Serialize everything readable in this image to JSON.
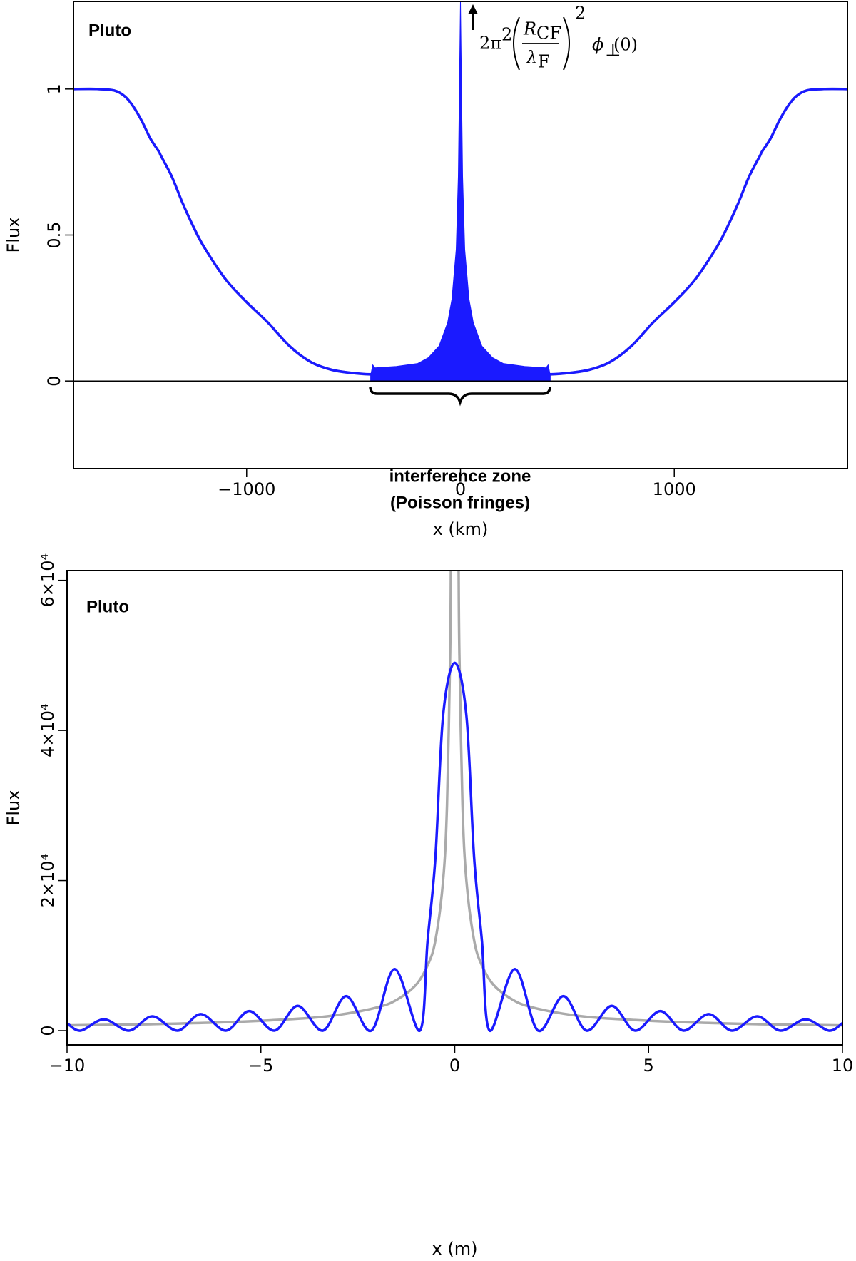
{
  "chart_data": [
    {
      "type": "line",
      "label": "Pluto",
      "xlabel": "x (km)",
      "ylabel": "Flux",
      "xlim": [
        -1810,
        1810
      ],
      "xticks": [
        {
          "value": -1000,
          "label": "−1000"
        },
        0,
        1000
      ],
      "ylim": [
        -0.3,
        1.3
      ],
      "yticks": [
        0,
        0.5,
        1
      ],
      "zero_line": true,
      "annotations": [
        "interference zone",
        "(Poisson fringes)"
      ],
      "formula": {
        "coef": "2π",
        "coef_exp": "2",
        "num": "R",
        "num_sub": "CF",
        "den": "λ",
        "den_sub": "F",
        "exp": "2",
        "func": "ϕ",
        "func_sub": "⊥",
        "arg": "(0)"
      },
      "series": [
        {
          "style": "line",
          "color": "#aaaaaa",
          "x": [
            -1810,
            -1700,
            -1620,
            -1570,
            -1530,
            -1490,
            -1450,
            -1410,
            -1400,
            -1350,
            -1300,
            -1250,
            -1200,
            -1100,
            -1000,
            -900,
            -800,
            -700,
            -600,
            -500,
            -420,
            -300,
            0,
            300,
            420,
            500,
            600,
            700,
            800,
            900,
            1000,
            1100,
            1200,
            1250,
            1300,
            1350,
            1400,
            1410,
            1450,
            1490,
            1530,
            1570,
            1620,
            1700,
            1810
          ],
          "values": [
            1,
            1,
            0.995,
            0.975,
            0.94,
            0.89,
            0.83,
            0.785,
            0.77,
            0.7,
            0.61,
            0.53,
            0.46,
            0.35,
            0.27,
            0.2,
            0.12,
            0.065,
            0.038,
            0.027,
            0.022,
            0.02,
            0.02,
            0.02,
            0.022,
            0.027,
            0.038,
            0.065,
            0.12,
            0.2,
            0.27,
            0.35,
            0.46,
            0.53,
            0.61,
            0.7,
            0.77,
            0.785,
            0.83,
            0.89,
            0.94,
            0.975,
            0.995,
            1,
            1
          ]
        },
        {
          "style": "line",
          "color": "#1a1aff",
          "x": [
            -1810,
            -1700,
            -1620,
            -1570,
            -1530,
            -1490,
            -1450,
            -1410,
            -1400,
            -1350,
            -1300,
            -1250,
            -1200,
            -1100,
            -1000,
            -900,
            -800,
            -700,
            -600,
            -500,
            -420,
            -300,
            0,
            300,
            420,
            500,
            600,
            700,
            800,
            900,
            1000,
            1100,
            1200,
            1250,
            1300,
            1350,
            1400,
            1410,
            1450,
            1490,
            1530,
            1570,
            1620,
            1700,
            1810
          ],
          "values": [
            1,
            1,
            0.995,
            0.975,
            0.94,
            0.89,
            0.83,
            0.785,
            0.77,
            0.7,
            0.61,
            0.53,
            0.46,
            0.35,
            0.27,
            0.2,
            0.12,
            0.065,
            0.038,
            0.027,
            0.023,
            0.022,
            0.022,
            0.022,
            0.023,
            0.027,
            0.038,
            0.065,
            0.12,
            0.2,
            0.27,
            0.35,
            0.46,
            0.53,
            0.61,
            0.7,
            0.77,
            0.785,
            0.83,
            0.89,
            0.94,
            0.975,
            0.995,
            1,
            1
          ]
        },
        {
          "style": "area",
          "color": "#1a1aff",
          "x": [
            -420,
            -410,
            -400,
            -300,
            -200,
            -150,
            -100,
            -60,
            -40,
            -20,
            -10,
            0,
            10,
            20,
            40,
            60,
            100,
            150,
            200,
            300,
            400,
            410,
            420
          ],
          "values": [
            0.02,
            0.055,
            0.045,
            0.05,
            0.06,
            0.08,
            0.12,
            0.2,
            0.28,
            0.45,
            0.7,
            1.3,
            0.7,
            0.45,
            0.28,
            0.2,
            0.12,
            0.08,
            0.06,
            0.05,
            0.045,
            0.055,
            0.02
          ]
        }
      ]
    },
    {
      "type": "line",
      "label": "Pluto",
      "xlabel": "x (m)",
      "ylabel": "Flux",
      "xlim": [
        -10,
        10
      ],
      "xticks": [
        {
          "value": -10,
          "label": "−10"
        },
        {
          "value": -5,
          "label": "−5"
        },
        0,
        5,
        10
      ],
      "ylim": [
        -1900,
        61300
      ],
      "yticks": [
        0,
        {
          "value": 20000,
          "label": "2×10⁴"
        },
        {
          "value": 40000,
          "label": "4×10⁴"
        },
        {
          "value": 60000,
          "label": "6×10⁴"
        }
      ],
      "series": [
        {
          "style": "line",
          "color": "#aaaaaa",
          "x": [
            -10,
            -8,
            -6,
            -4,
            -3,
            -2,
            -1.5,
            -1,
            -0.7,
            -0.5,
            -0.3,
            -0.2,
            -0.12,
            -0.1,
            0,
            0.1,
            0.12,
            0.2,
            0.3,
            0.5,
            0.7,
            1,
            1.5,
            2,
            3,
            4,
            6,
            8,
            10
          ],
          "values": [
            700,
            850,
            1100,
            1600,
            2100,
            3100,
            4100,
            6100,
            8700,
            12000,
            20000,
            30000,
            50000,
            61300,
            null,
            61300,
            50000,
            30000,
            20000,
            12000,
            8700,
            6100,
            4100,
            3100,
            2100,
            1600,
            1100,
            850,
            700
          ]
        },
        {
          "style": "line",
          "color": "#1a1aff",
          "x": [
            -10,
            -9.65,
            -9.05,
            -8.4,
            -7.8,
            -7.15,
            -6.55,
            -5.9,
            -5.3,
            -4.65,
            -4.05,
            -3.4,
            -2.8,
            -2.15,
            -1.55,
            -0.9,
            -0.7,
            -0.5,
            -0.3,
            0,
            0.3,
            0.5,
            0.7,
            0.9,
            1.55,
            2.15,
            2.8,
            3.4,
            4.05,
            4.65,
            5.3,
            5.9,
            6.55,
            7.15,
            7.8,
            8.4,
            9.05,
            9.65,
            10
          ],
          "values": [
            1000,
            0,
            1500,
            0,
            1900,
            0,
            2200,
            0,
            2600,
            0,
            3300,
            0,
            4600,
            0,
            8200,
            0,
            12000,
            23000,
            42000,
            49000,
            42000,
            23000,
            12000,
            0,
            8200,
            0,
            4600,
            0,
            3300,
            0,
            2600,
            0,
            2200,
            0,
            1900,
            0,
            1500,
            0,
            1000
          ]
        }
      ]
    }
  ]
}
